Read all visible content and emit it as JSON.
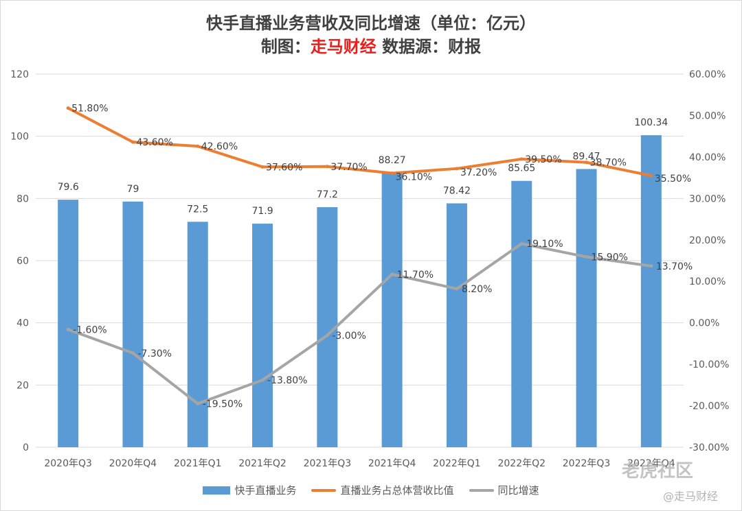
{
  "title_line1": "快手直播业务营收及同比增速（单位：亿元）",
  "title_line2_prefix": "制图：",
  "title_line2_brand": "走马财经",
  "title_line2_suffix": " 数据源：财报",
  "watermark_main": "老虎社区",
  "watermark_sub": "@走马财经",
  "colors": {
    "bar": "#5b9bd5",
    "share": "#ed7d31",
    "growth": "#a5a5a5"
  },
  "chart_data": {
    "type": "bar+line",
    "categories": [
      "2020年Q3",
      "2020年Q4",
      "2021年Q1",
      "2021年Q2",
      "2021年Q3",
      "2021年Q4",
      "2022年Q1",
      "2022年Q2",
      "2022年Q3",
      "2022年Q4"
    ],
    "left_axis": {
      "ylim": [
        0,
        120
      ],
      "ticks": [
        "0",
        "20",
        "40",
        "60",
        "80",
        "100",
        "120"
      ]
    },
    "right_axis": {
      "ylim": [
        -30,
        60
      ],
      "ticks": [
        "-30.00%",
        "-20.00%",
        "-10.00%",
        "0.00%",
        "10.00%",
        "20.00%",
        "30.00%",
        "40.00%",
        "50.00%",
        "60.00%"
      ]
    },
    "series": [
      {
        "name": "快手直播业务",
        "type": "bar",
        "axis": "left",
        "values": [
          79.6,
          79,
          72.5,
          71.9,
          77.2,
          88.27,
          78.42,
          85.65,
          89.47,
          100.34
        ],
        "labels": [
          "79.6",
          "79",
          "72.5",
          "71.9",
          "77.2",
          "88.27",
          "78.42",
          "85.65",
          "89.47",
          "100.34"
        ]
      },
      {
        "name": "直播业务占总体营收比值",
        "type": "line",
        "axis": "right",
        "values": [
          51.8,
          43.6,
          42.6,
          37.6,
          37.7,
          36.1,
          37.2,
          39.5,
          38.7,
          35.5
        ],
        "labels": [
          "51.80%",
          "43.60%",
          "42.60%",
          "37.60%",
          "37.70%",
          "36.10%",
          "37.20%",
          "39.50%",
          "38.70%",
          "35.50%"
        ]
      },
      {
        "name": "同比增速",
        "type": "line",
        "axis": "right",
        "values": [
          -1.6,
          -7.3,
          -19.5,
          -13.8,
          -3.0,
          11.7,
          8.2,
          19.1,
          15.9,
          13.7
        ],
        "labels": [
          "-1.60%",
          "-7.30%",
          "-19.50%",
          "-13.80%",
          "-3.00%",
          "11.70%",
          "8.20%",
          "19.10%",
          "15.90%",
          "13.70%"
        ]
      }
    ],
    "legend": [
      "快手直播业务",
      "直播业务占总体营收比值",
      "同比增速"
    ]
  }
}
